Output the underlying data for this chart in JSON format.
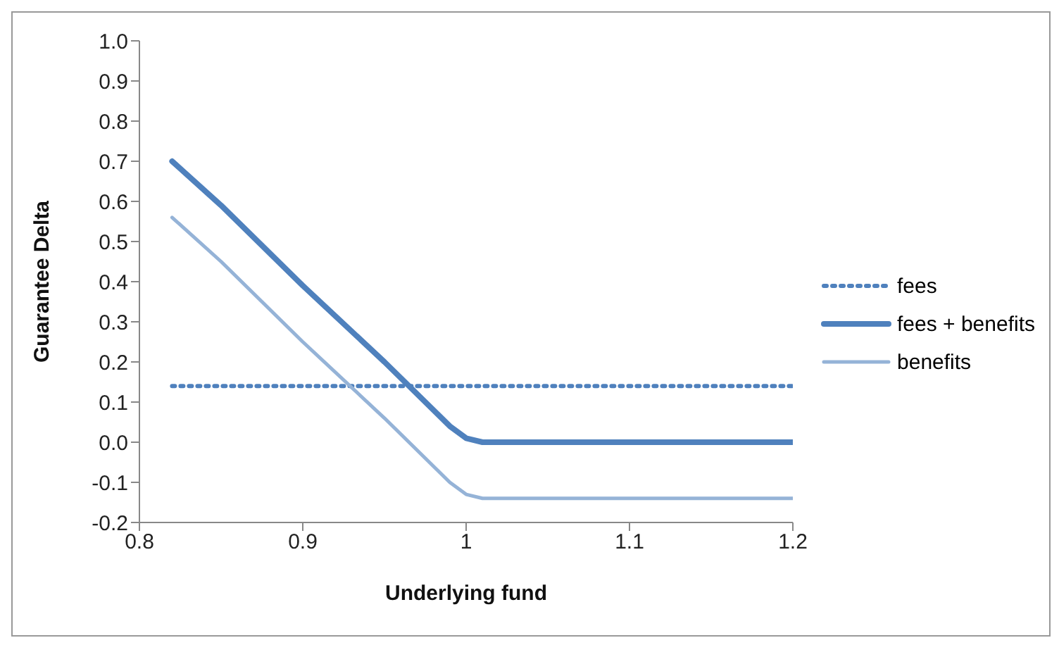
{
  "chart_data": {
    "type": "line",
    "xlabel": "Underlying fund",
    "ylabel": "Guarantee Delta",
    "xlim": [
      0.8,
      1.2
    ],
    "xticks": [
      {
        "value": 0.8,
        "label": "0.8"
      },
      {
        "value": 0.9,
        "label": "0.9"
      },
      {
        "value": 1,
        "label": "1"
      },
      {
        "value": 1.1,
        "label": "1.1"
      },
      {
        "value": 1.2,
        "label": "1.2"
      }
    ],
    "ylim": [
      -0.2,
      1.0
    ],
    "yticks": [
      {
        "value": -0.2,
        "label": "-0.2"
      },
      {
        "value": -0.1,
        "label": "-0.1"
      },
      {
        "value": 0,
        "label": "0.0"
      },
      {
        "value": 0.1,
        "label": "0.1"
      },
      {
        "value": 0.2,
        "label": "0.2"
      },
      {
        "value": 0.3,
        "label": "0.3"
      },
      {
        "value": 0.4,
        "label": "0.4"
      },
      {
        "value": 0.5,
        "label": "0.5"
      },
      {
        "value": 0.6,
        "label": "0.6"
      },
      {
        "value": 0.7,
        "label": "0.7"
      },
      {
        "value": 0.8,
        "label": "0.8"
      },
      {
        "value": 0.9,
        "label": "0.9"
      },
      {
        "value": 1.0,
        "label": "1.0"
      }
    ],
    "legend": "right",
    "marker": "none",
    "series": [
      {
        "name": "fees",
        "color": "#4f81bd",
        "line_style": "dotted",
        "x": [
          0.82,
          1.2
        ],
        "values": [
          0.14,
          0.14
        ]
      },
      {
        "name": "fees + benefits",
        "color": "#4f81bd",
        "line_style": "solid",
        "x": [
          0.82,
          0.85,
          0.9,
          0.95,
          0.99,
          1.0,
          1.01,
          1.2
        ],
        "values": [
          0.7,
          0.59,
          0.39,
          0.2,
          0.04,
          0.01,
          0.0,
          0.0
        ]
      },
      {
        "name": "benefits",
        "color": "#95b3d7",
        "line_style": "solid",
        "x": [
          0.82,
          0.85,
          0.9,
          0.95,
          0.99,
          1.0,
          1.01,
          1.2
        ],
        "values": [
          0.56,
          0.45,
          0.25,
          0.06,
          -0.1,
          -0.13,
          -0.14,
          -0.14
        ]
      }
    ]
  }
}
